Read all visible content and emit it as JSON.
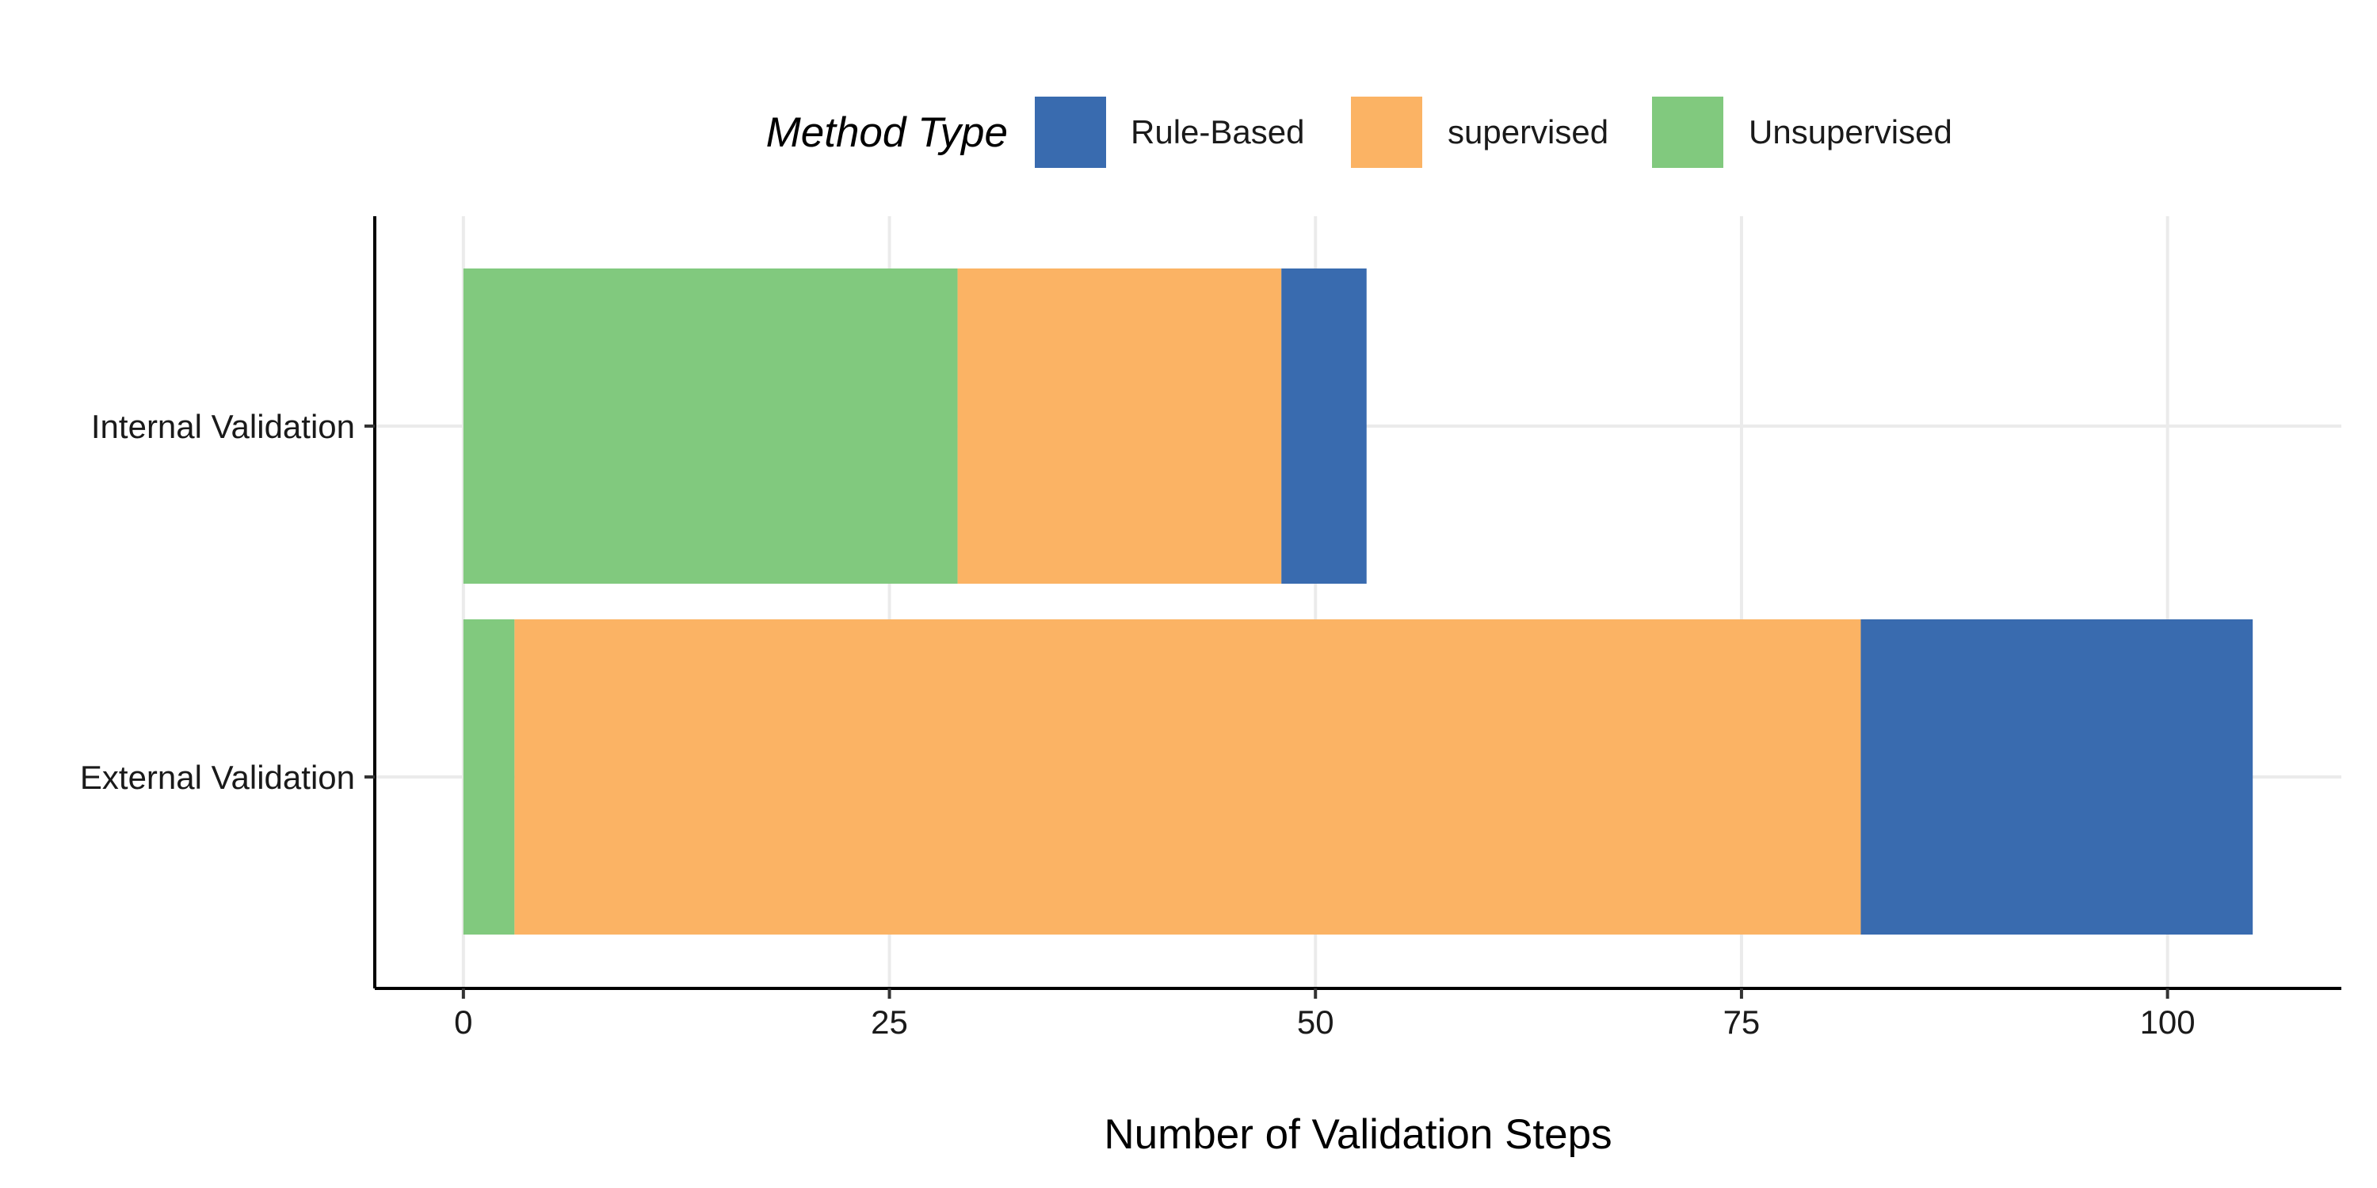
{
  "chart_data": {
    "type": "bar",
    "orientation": "horizontal",
    "stacked": true,
    "categories": [
      "Internal Validation",
      "External Validation"
    ],
    "series": [
      {
        "name": "Unsupervised",
        "color": "#81C97E",
        "values": [
          29,
          3
        ]
      },
      {
        "name": "supervised",
        "color": "#FBB364",
        "values": [
          19,
          79
        ]
      },
      {
        "name": "Rule-Based",
        "color": "#396BAF",
        "values": [
          5,
          23
        ]
      }
    ],
    "title": "",
    "xlabel": "Number of Validation Steps",
    "ylabel": "",
    "xlim": [
      -5.2,
      110.2
    ],
    "xticks": [
      0,
      25,
      50,
      75,
      100
    ],
    "grid": true,
    "legend": {
      "title": "Method Type",
      "position": "top",
      "items": [
        "Rule-Based",
        "supervised",
        "Unsupervised"
      ]
    }
  }
}
